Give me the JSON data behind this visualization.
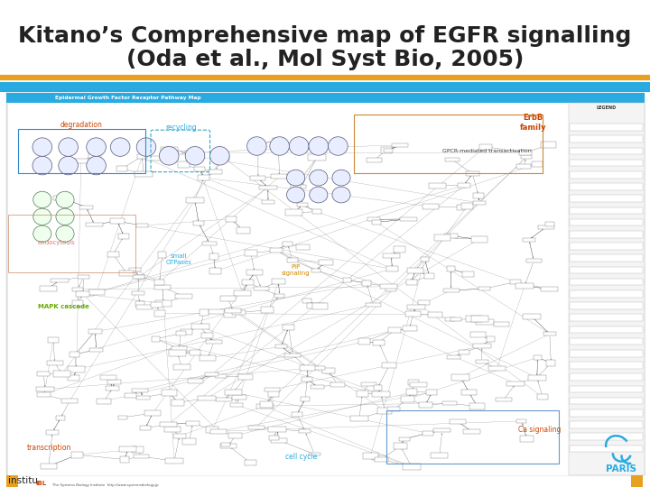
{
  "title_line1": "Kitano’s Comprehensive map of EGFR signalling",
  "title_line2": "(Oda et al., Mol Syst Bio, 2005)",
  "title_fontsize": 18,
  "title_color": "#222222",
  "bg_color": "#ffffff",
  "title_sep_orange": "#E8A020",
  "title_sep_blue": "#29ABE2",
  "fig_width": 7.2,
  "fig_height": 5.4,
  "dpi": 100,
  "map_header_bg": "#29ABE2",
  "map_bg": "#ffffff",
  "map_outer_bg": "#e8e8e8",
  "egfr_map_label": "Epidermal Growth Factor Receptor Pathway Map",
  "legend_label": "LEGEND",
  "label_degradation": "degradation",
  "label_recycling": "recycling",
  "label_endocytosis": "endocytosis",
  "label_small_gtpases": "small\nGTPases",
  "label_pip": "PIP\nsignaling",
  "label_mapk": "MAPK cascade",
  "label_transcription": "transcription",
  "label_cell_cycle": "cell cycle",
  "label_erbb": "ErbB\nfamily",
  "label_gpcr": "GPCR-mediated transactivation",
  "label_ca": "Ca signaling",
  "paris_color": "#29ABE2",
  "orange_color": "#E8A020",
  "red_label_color": "#cc4400",
  "cyan_label_color": "#29ABE2",
  "green_label_color": "#66aa00",
  "pink_label_color": "#e07070"
}
